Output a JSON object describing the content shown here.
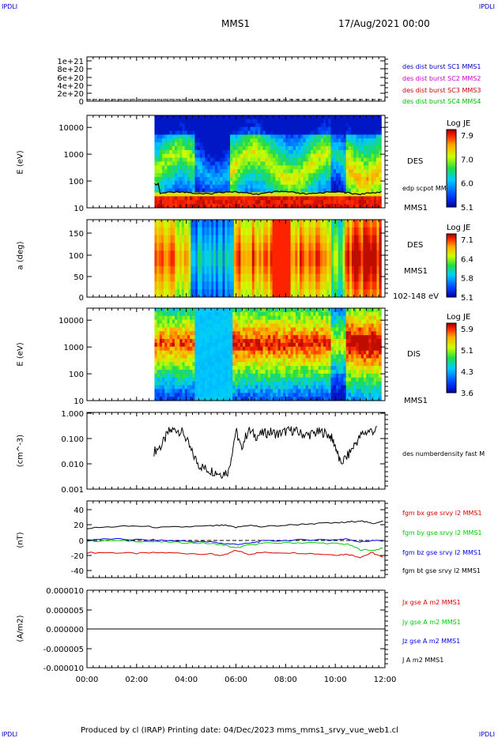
{
  "header": {
    "corner_tl": "IPDLI",
    "corner_tr": "IPDLI",
    "mission": "MMS1",
    "datetime": "17/Aug/2021 00:00"
  },
  "footer": {
    "text": "Produced by cl (IRAP)   Printing date: 04/Dec/2023   mms_mms1_srvy_vue_web1.cl",
    "corner_bl": "IPDLI",
    "corner_br": "IPDLI"
  },
  "colors": {
    "c1": "#0000cc",
    "c2": "#cc00cc",
    "c3": "#cc0000",
    "c4": "#00bb00",
    "black": "#000000",
    "green": "#00cc00",
    "red": "#dd0000",
    "blue": "#0000ee"
  },
  "chart_data": [
    {
      "type": "line",
      "panel": "des dist burst",
      "ylabel": "",
      "ytick_labels": [
        "1e+21",
        "8e+20",
        "6e+20",
        "4e+20",
        "2e+20",
        "0"
      ],
      "ylim": [
        0,
        1.1e+21
      ],
      "series": [
        {
          "name": "des dist burst SC1 MMS1",
          "values": []
        },
        {
          "name": "des dist burst SC2 MMS2",
          "values": []
        },
        {
          "name": "des dist burst SC3 MMS3",
          "values": []
        },
        {
          "name": "des dist burst SC4 MMS4",
          "values": []
        }
      ]
    },
    {
      "type": "heatmap",
      "panel": "DES energy spectrogram",
      "ylabel": "E (eV)",
      "ytick_labels": [
        "10000",
        "1000",
        "100",
        "10"
      ],
      "scale": "log",
      "instrument": "DES",
      "spacecraft": "MMS1",
      "overlay_label": "edp scpot MMS1",
      "colorbar": {
        "title": "Log JE",
        "ticks": [
          "7.9",
          "7.0",
          "6.0",
          "5.1"
        ]
      }
    },
    {
      "type": "heatmap",
      "panel": "DES pitch angle",
      "ylabel": "a (deg)",
      "ytick_labels": [
        "150",
        "100",
        "50",
        "0"
      ],
      "ylim": [
        0,
        180
      ],
      "instrument": "DES",
      "spacecraft": "MMS1",
      "energy_range": "102-148 eV",
      "colorbar": {
        "title": "Log JE",
        "ticks": [
          "7.1",
          "6.4",
          "5.8",
          "5.1"
        ]
      }
    },
    {
      "type": "heatmap",
      "panel": "DIS energy spectrogram",
      "ylabel": "E (eV)",
      "ytick_labels": [
        "10000",
        "1000",
        "100",
        "10"
      ],
      "scale": "log",
      "instrument": "DIS",
      "spacecraft": "MMS1",
      "colorbar": {
        "title": "Log JE",
        "ticks": [
          "5.9",
          "5.1",
          "4.3",
          "3.6"
        ]
      }
    },
    {
      "type": "line",
      "panel": "density",
      "ylabel": "(cm^-3)",
      "scale": "log",
      "ytick_labels": [
        "1.000",
        "0.100",
        "0.010",
        "0.001"
      ],
      "series": [
        {
          "name": "des numberdensity fast M",
          "x_hours": [
            2.7,
            3.0,
            3.3,
            3.6,
            3.9,
            4.2,
            4.5,
            4.8,
            5.1,
            5.4,
            5.7,
            6.0,
            6.2,
            6.5,
            6.8,
            7.1,
            7.4,
            7.7,
            8.0,
            8.3,
            8.6,
            8.9,
            9.2,
            9.5,
            9.8,
            10.0,
            10.2,
            10.5,
            10.8,
            11.1,
            11.4,
            11.7
          ],
          "values": [
            0.03,
            0.05,
            0.18,
            0.22,
            0.15,
            0.03,
            0.009,
            0.006,
            0.005,
            0.004,
            0.005,
            0.2,
            0.04,
            0.2,
            0.12,
            0.15,
            0.17,
            0.14,
            0.18,
            0.2,
            0.15,
            0.13,
            0.16,
            0.17,
            0.12,
            0.05,
            0.01,
            0.02,
            0.06,
            0.15,
            0.19,
            0.2
          ]
        }
      ]
    },
    {
      "type": "line",
      "panel": "magnetic field",
      "ylabel": "(nT)",
      "ytick_labels": [
        "40",
        "20",
        "0",
        "-20",
        "-40"
      ],
      "ylim": [
        -48,
        48
      ],
      "x_hours": [
        0,
        1,
        2,
        3,
        4,
        5,
        5.5,
        6,
        6.5,
        7,
        8,
        9,
        10,
        10.5,
        11,
        11.5,
        12
      ],
      "series": [
        {
          "name": "fgm bx gse srvy l2 MMS1",
          "color": "#dd0000",
          "values": [
            -16,
            -16,
            -17,
            -16,
            -17,
            -18,
            -20,
            -13,
            -18,
            -16,
            -16,
            -17,
            -19,
            -18,
            -22,
            -16,
            -24
          ]
        },
        {
          "name": "fgm by gse srvy l2 MMS1",
          "color": "#00cc00",
          "values": [
            -1,
            0,
            -1,
            -2,
            -3,
            -4,
            -6,
            -10,
            -6,
            -4,
            -3,
            -3,
            -4,
            -5,
            -12,
            -13,
            -10
          ]
        },
        {
          "name": "fgm bz gse srvy l2 MMS1",
          "color": "#0000ee",
          "values": [
            1,
            2,
            1,
            0,
            -1,
            -2,
            -4,
            -5,
            -4,
            -1,
            0,
            1,
            1,
            2,
            -2,
            0,
            -1
          ]
        },
        {
          "name": "fgm bt gse srvy l2 MMS1",
          "color": "#000000",
          "values": [
            16,
            18,
            19,
            17,
            18,
            19,
            20,
            17,
            20,
            18,
            20,
            22,
            23,
            24,
            26,
            22,
            27
          ]
        }
      ]
    },
    {
      "type": "line",
      "panel": "current density",
      "ylabel": "(A/m2)",
      "ytick_labels": [
        "0.000010",
        "0.000005",
        "0.000000",
        "-0.000005",
        "-0.000010"
      ],
      "ylim": [
        -1e-05,
        1e-05
      ],
      "series": [
        {
          "name": "Jx gse A m2 MMS1",
          "color": "#dd0000",
          "values": []
        },
        {
          "name": "Jy gse A m2 MMS1",
          "color": "#00cc00",
          "values": []
        },
        {
          "name": "Jz gse A m2 MMS1",
          "color": "#0000ee",
          "values": []
        },
        {
          "name": "J A m2 MMS1",
          "color": "#000000",
          "values": []
        }
      ]
    }
  ],
  "x_axis": {
    "ticks": [
      "00:00",
      "02:00",
      "04:00",
      "06:00",
      "08:00",
      "10:00",
      "12:00"
    ],
    "range_hours": [
      0,
      12
    ]
  }
}
